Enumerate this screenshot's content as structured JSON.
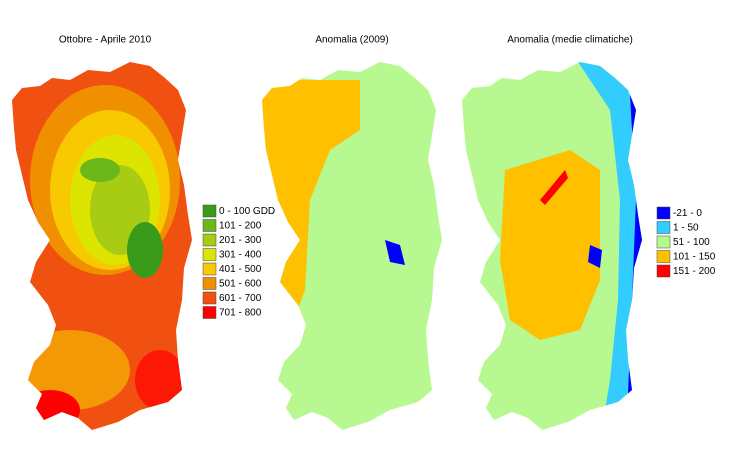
{
  "panels": [
    {
      "title": "Ottobre - Aprile 2010",
      "legend": [
        {
          "label": "0 - 100 GDD",
          "color": "#3a9a1a"
        },
        {
          "label": "101 - 200",
          "color": "#6ab81a"
        },
        {
          "label": "201 - 300",
          "color": "#a8cc14"
        },
        {
          "label": "301 - 400",
          "color": "#dce400"
        },
        {
          "label": "401 - 500",
          "color": "#f8c800"
        },
        {
          "label": "501 - 600",
          "color": "#f09000"
        },
        {
          "label": "601 - 700",
          "color": "#f05010"
        },
        {
          "label": "701 - 800",
          "color": "#ff0000"
        }
      ]
    },
    {
      "title": "Anomalia (2009)",
      "legend": []
    },
    {
      "title": "Anomalia (medie climatiche)",
      "legend": [
        {
          "label": "-21 - 0",
          "color": "#0000ff"
        },
        {
          "label": "1 - 50",
          "color": "#33ccff"
        },
        {
          "label": "51 - 100",
          "color": "#b8f890"
        },
        {
          "label": "101 - 150",
          "color": "#ffc000"
        },
        {
          "label": "151 - 200",
          "color": "#ff0000"
        }
      ]
    }
  ]
}
